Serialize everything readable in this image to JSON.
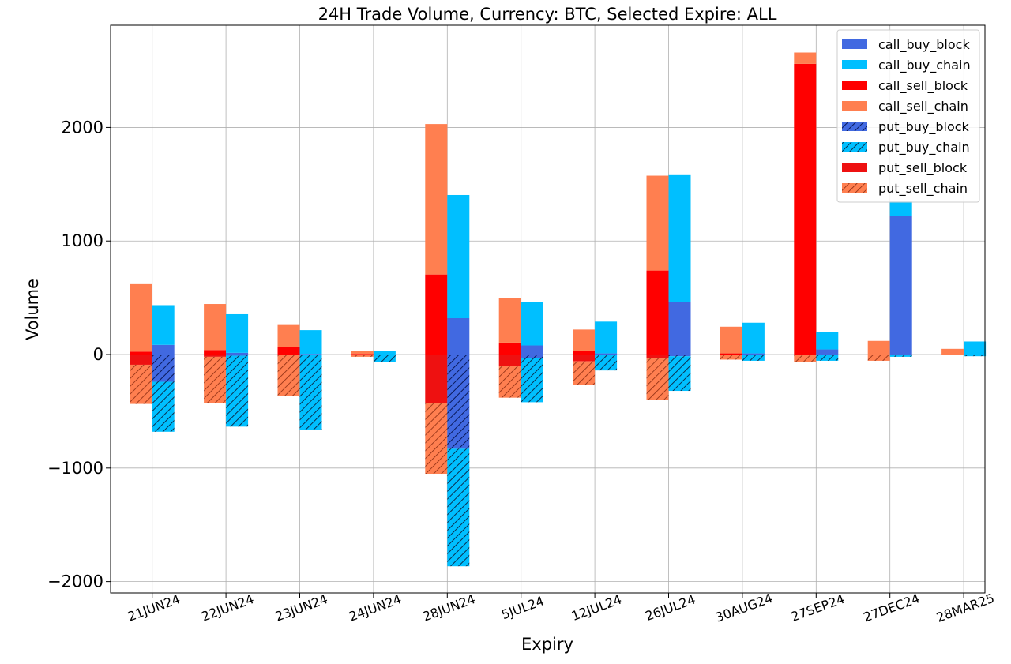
{
  "chart_data": {
    "type": "bar",
    "subtype": "stacked-grouped",
    "title": "24H Trade Volume, Currency: BTC, Selected Expire: ALL",
    "xlabel": "Expiry",
    "ylabel": "Volume",
    "ylim": [
      -2100,
      2900
    ],
    "yticks": [
      -2000,
      -1000,
      0,
      1000,
      2000
    ],
    "ytick_labels": [
      "−2000",
      "−1000",
      "0",
      "1000",
      "2000"
    ],
    "grid": true,
    "legend_position": "top-right",
    "categories": [
      "21JUN24",
      "22JUN24",
      "23JUN24",
      "24JUN24",
      "28JUN24",
      "5JUL24",
      "12JUL24",
      "26JUL24",
      "30AUG24",
      "27SEP24",
      "27DEC24",
      "28MAR25"
    ],
    "series": [
      {
        "name": "call_buy_block",
        "color": "#4169e1",
        "hatch": false,
        "group": "buy",
        "stack": "positive",
        "values": [
          85,
          15,
          5,
          0,
          320,
          80,
          10,
          460,
          10,
          45,
          1220,
          0
        ]
      },
      {
        "name": "call_buy_chain",
        "color": "#00bfff",
        "hatch": false,
        "group": "buy",
        "stack": "positive",
        "values": [
          350,
          340,
          210,
          30,
          1085,
          385,
          280,
          1120,
          270,
          155,
          130,
          115
        ]
      },
      {
        "name": "call_sell_block",
        "color": "#ff0000",
        "hatch": false,
        "group": "sell",
        "stack": "positive",
        "values": [
          25,
          40,
          65,
          5,
          705,
          105,
          35,
          740,
          10,
          2560,
          0,
          0
        ]
      },
      {
        "name": "call_sell_chain",
        "color": "#ff7f50",
        "hatch": false,
        "group": "sell",
        "stack": "positive",
        "values": [
          595,
          405,
          195,
          25,
          1325,
          390,
          185,
          835,
          235,
          100,
          120,
          50
        ]
      },
      {
        "name": "put_buy_block",
        "color": "#4169e1",
        "hatch": true,
        "group": "buy",
        "stack": "negative",
        "values": [
          -240,
          -10,
          -5,
          -5,
          -830,
          -30,
          -5,
          -15,
          -5,
          -5,
          -5,
          0
        ]
      },
      {
        "name": "put_buy_chain",
        "color": "#00bfff",
        "hatch": true,
        "group": "buy",
        "stack": "negative",
        "values": [
          -440,
          -625,
          -660,
          -60,
          -1035,
          -390,
          -135,
          -305,
          -50,
          -50,
          -15,
          -15
        ]
      },
      {
        "name": "put_sell_block",
        "color": "#ee1111",
        "hatch": false,
        "group": "sell",
        "stack": "negative",
        "values": [
          -90,
          -20,
          -5,
          -5,
          -425,
          -100,
          -60,
          -30,
          -5,
          -5,
          -5,
          0
        ]
      },
      {
        "name": "put_sell_chain",
        "color": "#ff7f50",
        "hatch": true,
        "group": "sell",
        "stack": "negative",
        "values": [
          -345,
          -410,
          -360,
          -15,
          -625,
          -280,
          -205,
          -370,
          -40,
          -60,
          -50,
          0
        ]
      }
    ]
  }
}
